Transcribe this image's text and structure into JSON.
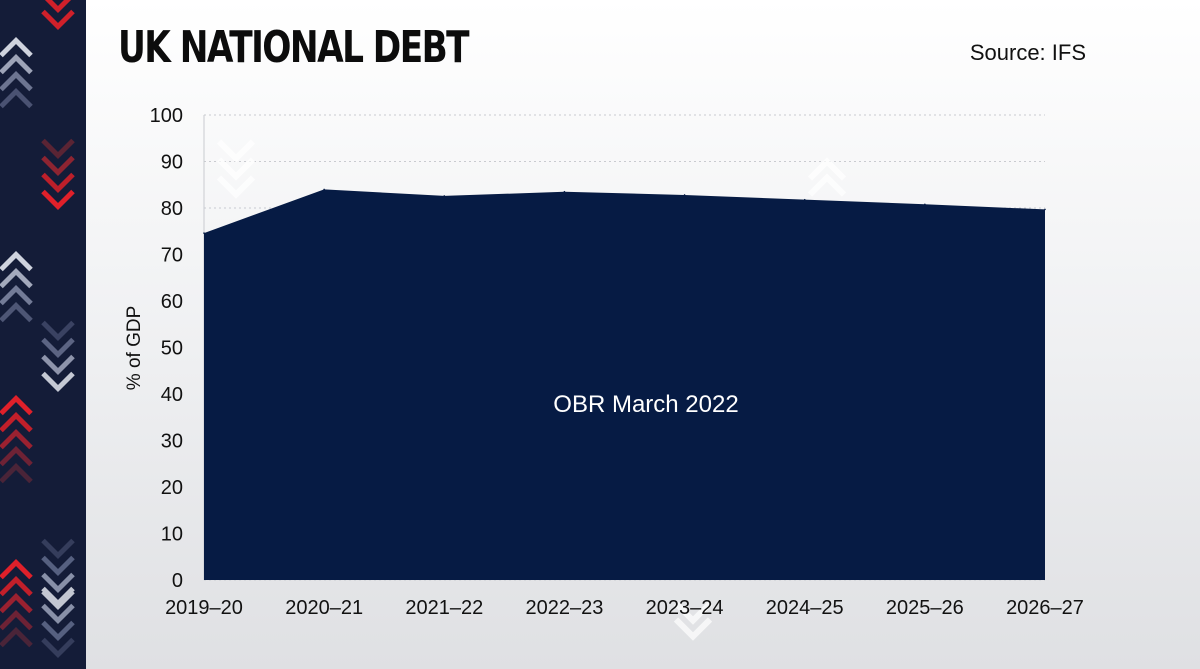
{
  "header": {
    "title": "UK NATIONAL DEBT",
    "source": "Source: IFS"
  },
  "colors": {
    "area_fill": "#061b44",
    "background": "#efeff1",
    "strip": "#141c38",
    "accent_red": "#d0202a"
  },
  "decor": {
    "strip_icon": "chevron-arrows-icon",
    "watermark_icon": "chevron-arrows-icon"
  },
  "chart_data": {
    "type": "area",
    "title": "UK NATIONAL DEBT",
    "ylabel": "% of GDP",
    "xlabel": "",
    "ylim": [
      0,
      100
    ],
    "yticks": [
      0,
      10,
      20,
      30,
      40,
      50,
      60,
      70,
      80,
      90,
      100
    ],
    "grid": true,
    "categories": [
      "2019–20",
      "2020–21",
      "2021–22",
      "2022–23",
      "2023–24",
      "2024–25",
      "2025–26",
      "2026–27"
    ],
    "series": [
      {
        "name": "OBR March 2022",
        "values": [
          74.6,
          84,
          82.6,
          83.5,
          82.8,
          81.8,
          80.8,
          79.7
        ]
      }
    ]
  }
}
